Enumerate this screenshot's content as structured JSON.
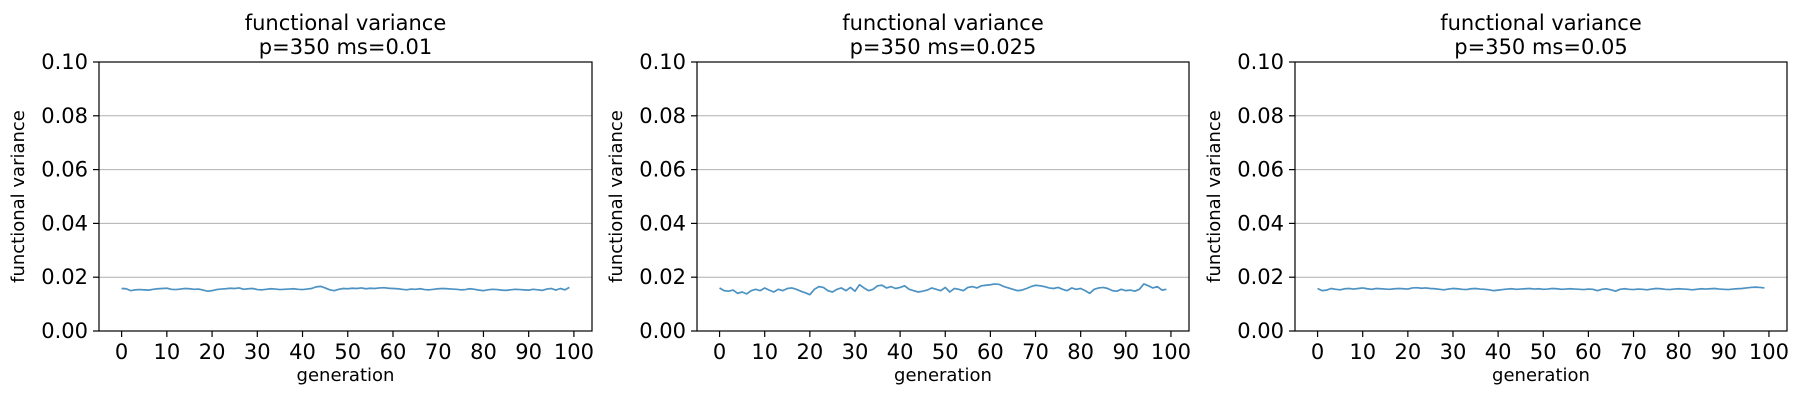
{
  "chart_data": [
    {
      "type": "line",
      "title_line1": "functional variance",
      "title_line2": "p=350 ms=0.01",
      "xlabel": "generation",
      "ylabel": "functional variance",
      "xlim": [
        -5,
        104
      ],
      "ylim": [
        0,
        0.1
      ],
      "xticks": [
        0,
        10,
        20,
        30,
        40,
        50,
        60,
        70,
        80,
        90,
        100
      ],
      "yticks": [
        0.0,
        0.02,
        0.04,
        0.06,
        0.08,
        0.1
      ],
      "ytick_labels": [
        "0.00",
        "0.02",
        "0.04",
        "0.06",
        "0.08",
        "0.10"
      ],
      "grid": "y",
      "color": "#1f77b4",
      "y": [
        0.0158,
        0.0157,
        0.015,
        0.0153,
        0.0154,
        0.0153,
        0.0152,
        0.0155,
        0.0157,
        0.0158,
        0.0159,
        0.0155,
        0.0154,
        0.0156,
        0.0158,
        0.0157,
        0.0155,
        0.0156,
        0.0152,
        0.0148,
        0.015,
        0.0154,
        0.0156,
        0.0157,
        0.0159,
        0.0158,
        0.016,
        0.0155,
        0.0157,
        0.0158,
        0.0154,
        0.0153,
        0.0155,
        0.0157,
        0.0156,
        0.0154,
        0.0155,
        0.0156,
        0.0157,
        0.0155,
        0.0154,
        0.0156,
        0.0158,
        0.0164,
        0.0166,
        0.016,
        0.0153,
        0.015,
        0.0155,
        0.0158,
        0.0157,
        0.0159,
        0.0158,
        0.016,
        0.0157,
        0.0159,
        0.0158,
        0.016,
        0.0161,
        0.0159,
        0.0158,
        0.0157,
        0.0155,
        0.0153,
        0.0156,
        0.0155,
        0.0157,
        0.0154,
        0.0153,
        0.0155,
        0.0157,
        0.0158,
        0.0157,
        0.0156,
        0.0155,
        0.0153,
        0.0154,
        0.0157,
        0.0155,
        0.0152,
        0.015,
        0.0153,
        0.0155,
        0.0154,
        0.0152,
        0.0151,
        0.0153,
        0.0155,
        0.0154,
        0.0153,
        0.0152,
        0.0155,
        0.0153,
        0.0151,
        0.0156,
        0.0158,
        0.0152,
        0.0158,
        0.0153,
        0.0162
      ]
    },
    {
      "type": "line",
      "title_line1": "functional variance",
      "title_line2": "p=350 ms=0.025",
      "xlabel": "generation",
      "ylabel": "functional variance",
      "xlim": [
        -5,
        104
      ],
      "ylim": [
        0,
        0.1
      ],
      "xticks": [
        0,
        10,
        20,
        30,
        40,
        50,
        60,
        70,
        80,
        90,
        100
      ],
      "yticks": [
        0.0,
        0.02,
        0.04,
        0.06,
        0.08,
        0.1
      ],
      "ytick_labels": [
        "0.00",
        "0.02",
        "0.04",
        "0.06",
        "0.08",
        "0.10"
      ],
      "grid": "y",
      "color": "#1f77b4",
      "y": [
        0.016,
        0.015,
        0.0148,
        0.0152,
        0.014,
        0.0145,
        0.0138,
        0.015,
        0.0155,
        0.015,
        0.016,
        0.0152,
        0.0145,
        0.0155,
        0.015,
        0.0158,
        0.016,
        0.0155,
        0.0148,
        0.0142,
        0.0135,
        0.0155,
        0.0165,
        0.0162,
        0.015,
        0.0145,
        0.0155,
        0.016,
        0.015,
        0.0162,
        0.0148,
        0.0172,
        0.016,
        0.015,
        0.0155,
        0.0168,
        0.017,
        0.016,
        0.0165,
        0.0158,
        0.0162,
        0.0168,
        0.0155,
        0.015,
        0.0145,
        0.0148,
        0.0152,
        0.016,
        0.0155,
        0.015,
        0.0162,
        0.0145,
        0.0158,
        0.0155,
        0.015,
        0.0162,
        0.0165,
        0.016,
        0.0168,
        0.017,
        0.0172,
        0.0175,
        0.0173,
        0.0165,
        0.016,
        0.0155,
        0.015,
        0.0152,
        0.0158,
        0.0165,
        0.017,
        0.0168,
        0.0165,
        0.016,
        0.0158,
        0.0162,
        0.0155,
        0.015,
        0.016,
        0.0155,
        0.0158,
        0.015,
        0.014,
        0.0155,
        0.016,
        0.0162,
        0.0158,
        0.015,
        0.0148,
        0.0155,
        0.015,
        0.0152,
        0.0148,
        0.0155,
        0.0175,
        0.0168,
        0.016,
        0.0165,
        0.0152,
        0.0155
      ]
    },
    {
      "type": "line",
      "title_line1": "functional variance",
      "title_line2": "p=350 ms=0.05",
      "xlabel": "generation",
      "ylabel": "functional variance",
      "xlim": [
        -5,
        104
      ],
      "ylim": [
        0,
        0.1
      ],
      "xticks": [
        0,
        10,
        20,
        30,
        40,
        50,
        60,
        70,
        80,
        90,
        100
      ],
      "yticks": [
        0.0,
        0.02,
        0.04,
        0.06,
        0.08,
        0.1
      ],
      "ytick_labels": [
        "0.00",
        "0.02",
        "0.04",
        "0.06",
        "0.08",
        "0.10"
      ],
      "grid": "y",
      "color": "#1f77b4",
      "y": [
        0.0158,
        0.015,
        0.0152,
        0.0158,
        0.0155,
        0.0153,
        0.0157,
        0.0158,
        0.0156,
        0.0158,
        0.016,
        0.0157,
        0.0155,
        0.0158,
        0.0157,
        0.0156,
        0.0155,
        0.0157,
        0.0158,
        0.0157,
        0.0156,
        0.016,
        0.0161,
        0.0159,
        0.016,
        0.0158,
        0.0157,
        0.0155,
        0.0153,
        0.0156,
        0.0158,
        0.0157,
        0.0155,
        0.0154,
        0.0157,
        0.0158,
        0.0156,
        0.0155,
        0.0153,
        0.015,
        0.0152,
        0.0154,
        0.0156,
        0.0157,
        0.0155,
        0.0156,
        0.0157,
        0.0158,
        0.0156,
        0.0157,
        0.0155,
        0.0156,
        0.0158,
        0.0157,
        0.0155,
        0.0156,
        0.0157,
        0.0156,
        0.0155,
        0.0154,
        0.0156,
        0.0155,
        0.015,
        0.0155,
        0.0157,
        0.0153,
        0.0148,
        0.0155,
        0.0157,
        0.0155,
        0.0154,
        0.0156,
        0.0155,
        0.0153,
        0.0156,
        0.0158,
        0.0157,
        0.0155,
        0.0154,
        0.0156,
        0.0157,
        0.0156,
        0.0155,
        0.0153,
        0.0155,
        0.0157,
        0.0156,
        0.0157,
        0.0158,
        0.0156,
        0.0155,
        0.0154,
        0.0156,
        0.0157,
        0.0158,
        0.016,
        0.0162,
        0.0163,
        0.0162,
        0.016
      ]
    }
  ]
}
